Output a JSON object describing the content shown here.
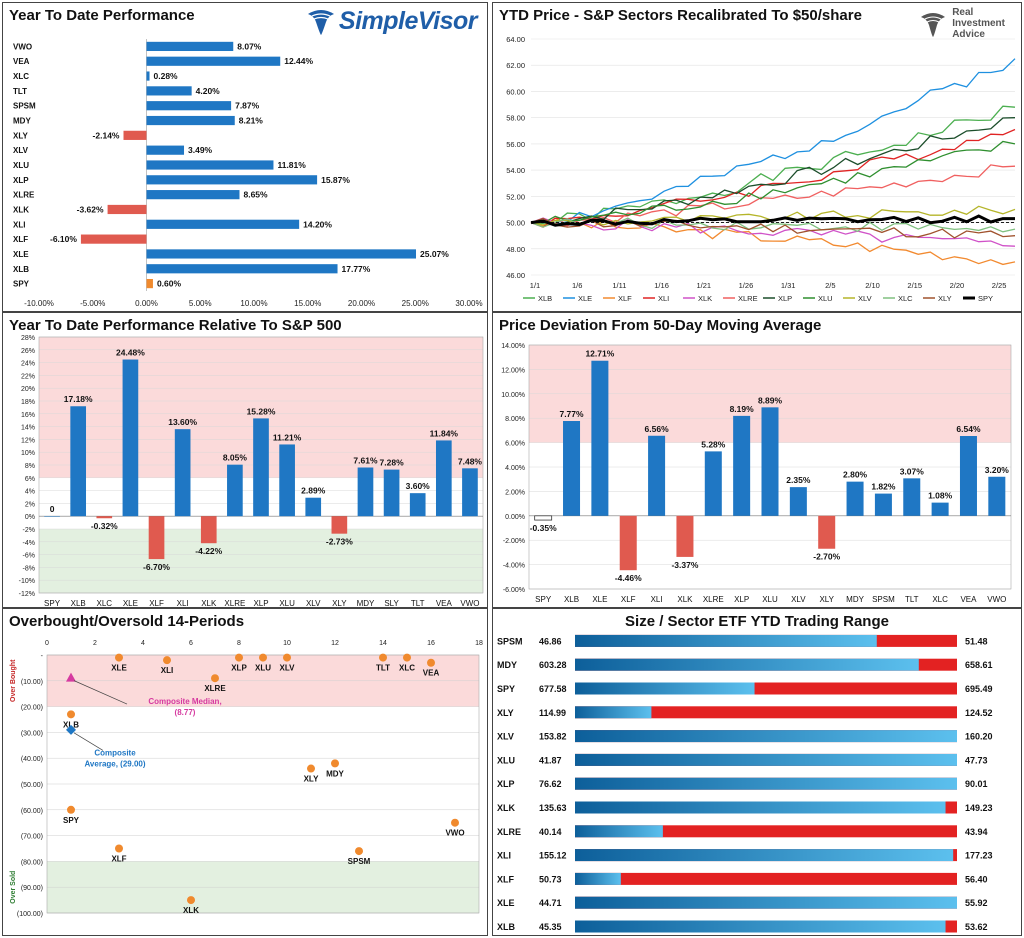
{
  "colors": {
    "positive": "#1f77c4",
    "negative": "#e05a4f",
    "spy": "#f08a2e",
    "overbought_zone": "#fbdada",
    "oversold_zone": "#e3f0e0",
    "dot": "#f08a2e",
    "median_marker": "#d63aa0",
    "average_marker": "#1f77c4",
    "range_blue": "#1f86c8",
    "range_red": "#e32222"
  },
  "logos": {
    "simplevisor": "SimpleVisor",
    "ria_line1": "Real",
    "ria_line2": "Investment",
    "ria_line3": "Advice"
  },
  "panels": {
    "ytd_title": "Year To Date Performance",
    "price_title": "YTD Price - S&P Sectors Recalibrated To $50/share",
    "relative_title": "Year To Date Performance Relative To S&P 500",
    "deviation_title": "Price Deviation From 50-Day Moving Average",
    "obos_title": "Overbought/Oversold 14-Periods",
    "range_title": "Size / Sector ETF YTD Trading Range"
  },
  "chart_data": [
    {
      "id": "ytd",
      "type": "bar",
      "orientation": "horizontal",
      "title": "Year To Date Performance",
      "categories": [
        "VWO",
        "VEA",
        "XLC",
        "TLT",
        "SPSM",
        "MDY",
        "XLY",
        "XLV",
        "XLU",
        "XLP",
        "XLRE",
        "XLK",
        "XLI",
        "XLF",
        "XLE",
        "XLB",
        "SPY"
      ],
      "values": [
        8.07,
        12.44,
        0.28,
        4.2,
        7.87,
        8.21,
        -2.14,
        3.49,
        11.81,
        15.87,
        8.65,
        -3.62,
        14.2,
        -6.1,
        25.07,
        17.77,
        0.6
      ],
      "labels": [
        "8.07%",
        "12.44%",
        "0.28%",
        "4.20%",
        "7.87%",
        "8.21%",
        "-2.14%",
        "3.49%",
        "11.81%",
        "15.87%",
        "8.65%",
        "-3.62%",
        "14.20%",
        "-6.10%",
        "25.07%",
        "17.77%",
        "0.60%"
      ],
      "xlim": [
        -10,
        30
      ],
      "xticks": [
        "-10.00%",
        "-5.00%",
        "0.00%",
        "5.00%",
        "10.00%",
        "15.00%",
        "20.00%",
        "25.00%",
        "30.00%"
      ]
    },
    {
      "id": "price",
      "type": "line",
      "title": "YTD Price - S&P Sectors Recalibrated To $50/share",
      "ylim": [
        46,
        64
      ],
      "yticks": [
        "46.00",
        "48.00",
        "50.00",
        "52.00",
        "54.00",
        "56.00",
        "58.00",
        "60.00",
        "62.00",
        "64.00"
      ],
      "xticks": [
        "1/1",
        "1/6",
        "1/11",
        "1/16",
        "1/21",
        "1/26",
        "1/31",
        "2/5",
        "2/10",
        "2/15",
        "2/20",
        "2/25"
      ],
      "n_points": 41,
      "baseline": 50,
      "series": [
        {
          "name": "XLB",
          "color": "#4caf50",
          "start": 50,
          "end": 58.8,
          "jitter": 0.5,
          "seed": 1
        },
        {
          "name": "XLE",
          "color": "#1e90e0",
          "start": 50,
          "end": 62.5,
          "jitter": 0.5,
          "seed": 2
        },
        {
          "name": "XLF",
          "color": "#f28a30",
          "start": 50,
          "end": 47.0,
          "jitter": 0.45,
          "seed": 3
        },
        {
          "name": "XLI",
          "color": "#e02424",
          "start": 50,
          "end": 57.1,
          "jitter": 0.45,
          "seed": 4
        },
        {
          "name": "XLK",
          "color": "#d052c8",
          "start": 50,
          "end": 48.2,
          "jitter": 0.45,
          "seed": 5
        },
        {
          "name": "XLRE",
          "color": "#f06060",
          "start": 50,
          "end": 54.3,
          "jitter": 0.4,
          "seed": 6
        },
        {
          "name": "XLP",
          "color": "#1b4d2a",
          "start": 50,
          "end": 58.0,
          "jitter": 0.45,
          "seed": 7
        },
        {
          "name": "XLU",
          "color": "#2f8f2f",
          "start": 50,
          "end": 56.0,
          "jitter": 0.45,
          "seed": 8
        },
        {
          "name": "XLV",
          "color": "#b5b52a",
          "start": 50,
          "end": 51.0,
          "jitter": 0.35,
          "seed": 9
        },
        {
          "name": "XLC",
          "color": "#80c080",
          "start": 50,
          "end": 49.5,
          "jitter": 0.4,
          "seed": 10
        },
        {
          "name": "XLY",
          "color": "#a0522d",
          "start": 50,
          "end": 49.0,
          "jitter": 0.4,
          "seed": 11
        },
        {
          "name": "SPY",
          "color": "#000000",
          "start": 50,
          "end": 50.3,
          "jitter": 0.25,
          "seed": 12,
          "bold": true
        }
      ]
    },
    {
      "id": "relative",
      "type": "bar",
      "title": "Year To Date Performance Relative To S&P 500",
      "categories": [
        "SPY",
        "XLB",
        "XLC",
        "XLE",
        "XLF",
        "XLI",
        "XLK",
        "XLRE",
        "XLP",
        "XLU",
        "XLV",
        "XLY",
        "MDY",
        "SLY",
        "TLT",
        "VEA",
        "VWO"
      ],
      "values": [
        0,
        17.18,
        -0.32,
        24.48,
        -6.7,
        13.6,
        -4.22,
        8.05,
        15.28,
        11.21,
        2.89,
        -2.73,
        7.61,
        7.28,
        3.6,
        11.84,
        7.48
      ],
      "labels": [
        "0",
        "17.18%",
        "-0.32%",
        "24.48%",
        "-6.70%",
        "13.60%",
        "-4.22%",
        "8.05%",
        "15.28%",
        "11.21%",
        "2.89%",
        "-2.73%",
        "7.61%",
        "7.28%",
        "3.60%",
        "11.84%",
        "7.48%"
      ],
      "ylim": [
        -12,
        28
      ],
      "yticks": [
        "-12%",
        "-10%",
        "-8%",
        "-6%",
        "-4%",
        "-2%",
        "0%",
        "2%",
        "4%",
        "6%",
        "8%",
        "10%",
        "12%",
        "14%",
        "16%",
        "18%",
        "20%",
        "22%",
        "24%",
        "26%",
        "28%"
      ],
      "overbought_above": 6,
      "oversold_below": -2
    },
    {
      "id": "deviation",
      "type": "bar",
      "title": "Price Deviation From 50-Day Moving Average",
      "categories": [
        "SPY",
        "XLB",
        "XLE",
        "XLF",
        "XLI",
        "XLK",
        "XLRE",
        "XLP",
        "XLU",
        "XLV",
        "XLY",
        "MDY",
        "SPSM",
        "TLT",
        "XLC",
        "VEA",
        "VWO"
      ],
      "values": [
        -0.35,
        7.77,
        12.71,
        -4.46,
        6.56,
        -3.37,
        5.28,
        8.19,
        8.89,
        2.35,
        -2.7,
        2.8,
        1.82,
        3.07,
        1.08,
        6.54,
        3.2
      ],
      "labels": [
        "-0.35%",
        "7.77%",
        "12.71%",
        "-4.46%",
        "6.56%",
        "-3.37%",
        "5.28%",
        "8.19%",
        "8.89%",
        "2.35%",
        "-2.70%",
        "2.80%",
        "1.82%",
        "3.07%",
        "1.08%",
        "6.54%",
        "3.20%"
      ],
      "ylim": [
        -6,
        14
      ],
      "yticks": [
        "-6.00%",
        "-4.00%",
        "-2.00%",
        "0.00%",
        "2.00%",
        "4.00%",
        "6.00%",
        "8.00%",
        "10.00%",
        "12.00%",
        "14.00%"
      ],
      "overbought_above": 6
    },
    {
      "id": "obos",
      "type": "scatter",
      "title": "Overbought/Oversold 14-Periods",
      "xlim": [
        0,
        18
      ],
      "xticks": [
        "0",
        "2",
        "4",
        "6",
        "8",
        "10",
        "12",
        "14",
        "16",
        "18"
      ],
      "ylim": [
        -100,
        0
      ],
      "yticks": [
        "-",
        "(10.00)",
        "(20.00)",
        "(30.00)",
        "(40.00)",
        "(50.00)",
        "(60.00)",
        "(70.00)",
        "(80.00)",
        "(90.00)",
        "(100.00)"
      ],
      "overbought_label": "Over Bought",
      "oversold_label": "Over Sold",
      "overbought_above": -20,
      "oversold_below": -80,
      "points": [
        {
          "name": "XLE",
          "x": 3,
          "y": -1
        },
        {
          "name": "XLI",
          "x": 5,
          "y": -2
        },
        {
          "name": "XLRE",
          "x": 7,
          "y": -9
        },
        {
          "name": "XLP",
          "x": 8,
          "y": -1
        },
        {
          "name": "XLU",
          "x": 9,
          "y": -1
        },
        {
          "name": "XLV",
          "x": 10,
          "y": -1
        },
        {
          "name": "TLT",
          "x": 14,
          "y": -1
        },
        {
          "name": "XLC",
          "x": 15,
          "y": -1
        },
        {
          "name": "VEA",
          "x": 16,
          "y": -3
        },
        {
          "name": "XLB",
          "x": 1,
          "y": -23
        },
        {
          "name": "XLY",
          "x": 11,
          "y": -44
        },
        {
          "name": "MDY",
          "x": 12,
          "y": -42
        },
        {
          "name": "SPY",
          "x": 1,
          "y": -60
        },
        {
          "name": "VWO",
          "x": 17,
          "y": -65
        },
        {
          "name": "XLF",
          "x": 3,
          "y": -75
        },
        {
          "name": "SPSM",
          "x": 13,
          "y": -76
        },
        {
          "name": "XLK",
          "x": 6,
          "y": -95
        }
      ],
      "median": {
        "label": "Composite Median,",
        "value_label": "(8.77)",
        "x": 1,
        "y": -8.77
      },
      "average": {
        "label": "Composite",
        "label2": "Average,  (29.00)",
        "x": 1,
        "y": -29.0
      }
    },
    {
      "id": "range",
      "type": "table",
      "title": "Size / Sector ETF YTD Trading Range",
      "rows": [
        {
          "ticker": "SPSM",
          "low": "46.86",
          "high": "51.48",
          "pct": 79
        },
        {
          "ticker": "MDY",
          "low": "603.28",
          "high": "658.61",
          "pct": 90
        },
        {
          "ticker": "SPY",
          "low": "677.58",
          "high": "695.49",
          "pct": 47
        },
        {
          "ticker": "XLY",
          "low": "114.99",
          "high": "124.52",
          "pct": 20
        },
        {
          "ticker": "XLV",
          "low": "153.82",
          "high": "160.20",
          "pct": 100
        },
        {
          "ticker": "XLU",
          "low": "41.87",
          "high": "47.73",
          "pct": 100
        },
        {
          "ticker": "XLP",
          "low": "76.62",
          "high": "90.01",
          "pct": 100
        },
        {
          "ticker": "XLK",
          "low": "135.63",
          "high": "149.23",
          "pct": 97
        },
        {
          "ticker": "XLRE",
          "low": "40.14",
          "high": "43.94",
          "pct": 23
        },
        {
          "ticker": "XLI",
          "low": "155.12",
          "high": "177.23",
          "pct": 99
        },
        {
          "ticker": "XLF",
          "low": "50.73",
          "high": "56.40",
          "pct": 12
        },
        {
          "ticker": "XLE",
          "low": "44.71",
          "high": "55.92",
          "pct": 100
        },
        {
          "ticker": "XLB",
          "low": "45.35",
          "high": "53.62",
          "pct": 97
        }
      ]
    }
  ]
}
